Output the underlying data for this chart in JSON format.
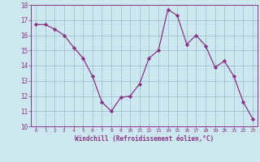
{
  "x": [
    0,
    1,
    2,
    3,
    4,
    5,
    6,
    7,
    8,
    9,
    10,
    11,
    12,
    13,
    14,
    15,
    16,
    17,
    18,
    19,
    20,
    21,
    22,
    23
  ],
  "y": [
    16.7,
    16.7,
    16.4,
    16.0,
    15.2,
    14.5,
    13.3,
    11.6,
    11.0,
    11.9,
    12.0,
    12.8,
    14.5,
    15.0,
    17.7,
    17.3,
    15.4,
    16.0,
    15.3,
    13.9,
    14.3,
    13.3,
    11.6,
    10.5
  ],
  "line_color": "#883388",
  "marker": "D",
  "marker_size": 2.2,
  "bg_color": "#cce8ee",
  "grid_color": "#99bbcc",
  "axis_color": "#883388",
  "tick_color": "#883388",
  "xlabel": "Windchill (Refroidissement éolien,°C)",
  "xlabel_color": "#883388",
  "ylim": [
    10,
    18
  ],
  "xlim": [
    -0.5,
    23.5
  ],
  "yticks": [
    10,
    11,
    12,
    13,
    14,
    15,
    16,
    17,
    18
  ],
  "xticks": [
    0,
    1,
    2,
    3,
    4,
    5,
    6,
    7,
    8,
    9,
    10,
    11,
    12,
    13,
    14,
    15,
    16,
    17,
    18,
    19,
    20,
    21,
    22,
    23
  ],
  "xtick_labels": [
    "0",
    "1",
    "2",
    "3",
    "4",
    "5",
    "6",
    "7",
    "8",
    "9",
    "10",
    "11",
    "12",
    "13",
    "14",
    "15",
    "16",
    "17",
    "18",
    "19",
    "20",
    "21",
    "22",
    "23"
  ]
}
